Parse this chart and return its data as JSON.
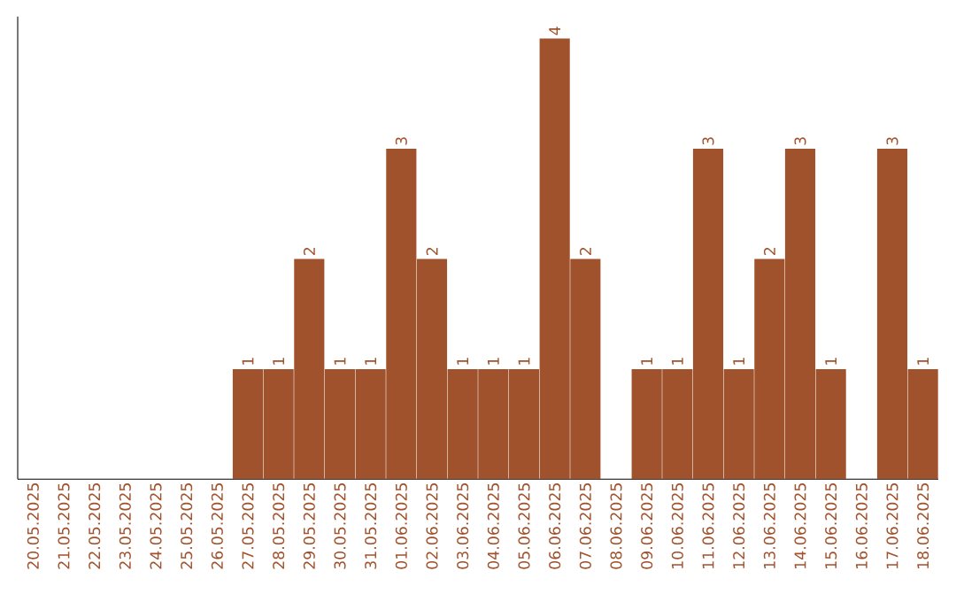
{
  "chart_data": {
    "type": "bar",
    "categories": [
      "20.05.2025",
      "21.05.2025",
      "22.05.2025",
      "23.05.2025",
      "24.05.2025",
      "25.05.2025",
      "26.05.2025",
      "27.05.2025",
      "28.05.2025",
      "29.05.2025",
      "30.05.2025",
      "31.05.2025",
      "01.06.2025",
      "02.06.2025",
      "03.06.2025",
      "04.06.2025",
      "05.06.2025",
      "06.06.2025",
      "07.06.2025",
      "08.06.2025",
      "09.06.2025",
      "10.06.2025",
      "11.06.2025",
      "12.06.2025",
      "13.06.2025",
      "14.06.2025",
      "15.06.2025",
      "16.06.2025",
      "17.06.2025",
      "18.06.2025"
    ],
    "values": [
      0,
      0,
      0,
      0,
      0,
      0,
      0,
      1,
      1,
      2,
      1,
      1,
      3,
      2,
      1,
      1,
      1,
      4,
      2,
      0,
      1,
      1,
      3,
      1,
      2,
      3,
      1,
      0,
      3,
      1
    ],
    "value_labels": [
      null,
      null,
      null,
      null,
      null,
      null,
      null,
      "1",
      "1",
      "2",
      "1",
      "1",
      "3",
      "2",
      "1",
      "1",
      "1",
      "4",
      "2",
      null,
      "1",
      "1",
      "3",
      "1",
      "2",
      "3",
      "1",
      null,
      "3",
      "1"
    ],
    "color": "#a0522d",
    "ylim": [
      0,
      4.2
    ],
    "tick_labels": "x"
  }
}
